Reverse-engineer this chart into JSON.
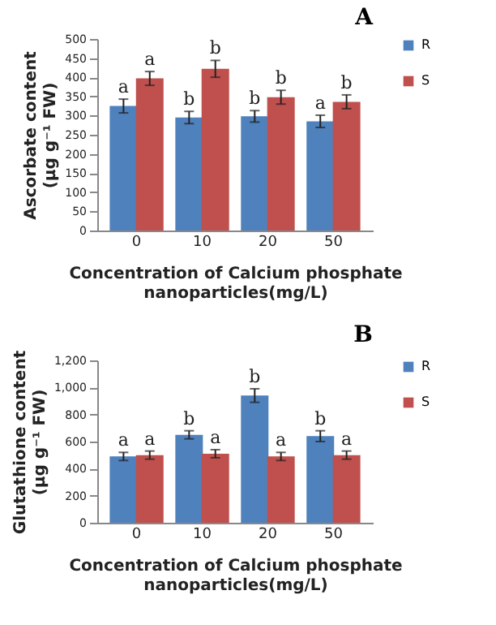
{
  "chart_data": [
    {
      "type": "bar",
      "title": "A",
      "xlabel": "Concentration of Calcium phosphate\nnanoparticles(mg/L)",
      "ylabel": "Ascorbate content\n(µg g⁻¹ FW)",
      "categories": [
        "0",
        "10",
        "20",
        "50"
      ],
      "ylim": [
        0,
        500
      ],
      "yticks": [
        0,
        50,
        100,
        150,
        200,
        250,
        300,
        350,
        400,
        450,
        500
      ],
      "legend": "right",
      "series": [
        {
          "name": "R",
          "color": "#4f81bd",
          "values": [
            325,
            295,
            298,
            285
          ],
          "errors": [
            18,
            16,
            15,
            16
          ],
          "value_labels": [
            "a",
            "b",
            "b",
            "a"
          ]
        },
        {
          "name": "S",
          "color": "#c0504d",
          "values": [
            397,
            422,
            348,
            336
          ],
          "errors": [
            18,
            22,
            18,
            18
          ],
          "value_labels": [
            "a",
            "b",
            "b",
            "b"
          ]
        }
      ]
    },
    {
      "type": "bar",
      "title": "B",
      "xlabel": "Concentration of Calcium phosphate\nnanoparticles(mg/L)",
      "ylabel": "Glutathione content\n(µg g⁻¹ FW)",
      "categories": [
        "0",
        "10",
        "20",
        "50"
      ],
      "ylim": [
        0,
        1200
      ],
      "yticks": [
        0,
        200,
        400,
        600,
        800,
        {
          "value": 1000,
          "label": "1,000"
        },
        {
          "value": 1200,
          "label": "1,200"
        }
      ],
      "legend": "right",
      "series": [
        {
          "name": "R",
          "color": "#4f81bd",
          "values": [
            490,
            650,
            940,
            640
          ],
          "errors": [
            30,
            30,
            50,
            40
          ],
          "value_labels": [
            "a",
            "b",
            "b",
            "b"
          ]
        },
        {
          "name": "S",
          "color": "#c0504d",
          "values": [
            500,
            510,
            490,
            500
          ],
          "errors": [
            30,
            30,
            30,
            30
          ],
          "value_labels": [
            "a",
            "a",
            "a",
            "a"
          ]
        }
      ]
    }
  ]
}
